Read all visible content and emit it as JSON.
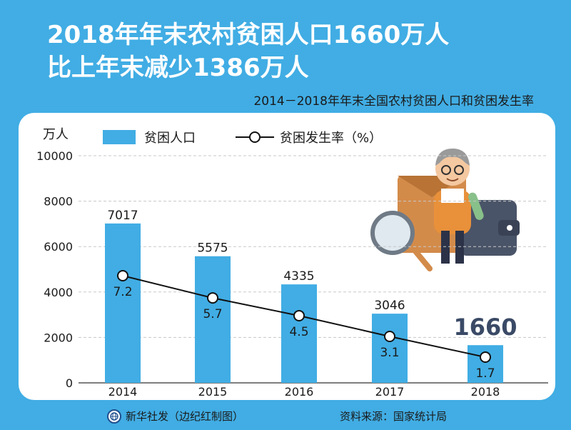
{
  "headline": {
    "line1": "2018年年末农村贫困人口1660万人",
    "line2": "比上年末减少1386万人"
  },
  "subtitle": "2014－2018年年末全国农村贫困人口和贫困发生率",
  "footer": {
    "source_left": "新华社发（边纪红制图）",
    "source_right": "资料来源：国家统计局",
    "logo_icon": "xinhua-globe-icon"
  },
  "colors": {
    "background": "#41ade4",
    "bar": "#41ade4",
    "line": "#111111",
    "highlight_value": "#3a4a66"
  },
  "chart_data": {
    "type": "bar",
    "categories": [
      "2014",
      "2015",
      "2016",
      "2017",
      "2018"
    ],
    "series": [
      {
        "name": "贫困人口",
        "values": [
          7017,
          5575,
          4335,
          3046,
          1660
        ],
        "axis": "left"
      },
      {
        "name": "贫困发生率（%）",
        "type": "line",
        "values": [
          7.2,
          5.7,
          4.5,
          3.1,
          1.7
        ]
      }
    ],
    "bar_labels": [
      "7017",
      "5575",
      "4335",
      "3046",
      "1660"
    ],
    "line_labels": [
      "7.2",
      "5.7",
      "4.5",
      "3.1",
      "1.7"
    ],
    "ylabel": "万人",
    "ylim": [
      0,
      10000
    ],
    "yticks": [
      "0",
      "2000",
      "4000",
      "6000",
      "8000",
      "10000"
    ],
    "grid": true,
    "legend": "top-left"
  }
}
